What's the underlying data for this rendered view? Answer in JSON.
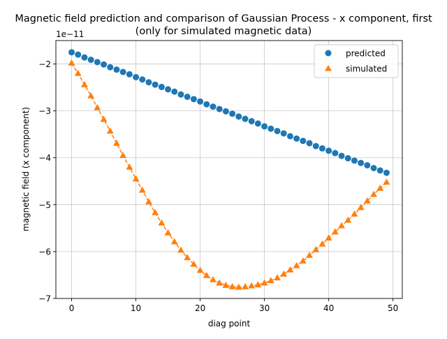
{
  "chart_data": {
    "type": "scatter",
    "title_line1": "Magnetic field prediction and comparison of Gaussian Process - x component, first",
    "title_line2": "(only for simulated magnetic data)",
    "xlabel": "diag point",
    "ylabel": "magnetic field (x component)",
    "y_offset_label": "1e−11",
    "xlim": [
      -2.45,
      51.45
    ],
    "ylim": [
      -7.0,
      -1.5
    ],
    "x_ticks": [
      0,
      10,
      20,
      30,
      40,
      50
    ],
    "x_tick_labels": [
      "0",
      "10",
      "20",
      "30",
      "40",
      "50"
    ],
    "y_ticks": [
      -7,
      -6,
      -5,
      -4,
      -3,
      -2
    ],
    "y_tick_labels": [
      "−7",
      "−6",
      "−5",
      "−4",
      "−3",
      "−2"
    ],
    "grid": true,
    "legend_position": "upper right",
    "x": [
      0,
      1,
      2,
      3,
      4,
      5,
      6,
      7,
      8,
      9,
      10,
      11,
      12,
      13,
      14,
      15,
      16,
      17,
      18,
      19,
      20,
      21,
      22,
      23,
      24,
      25,
      26,
      27,
      28,
      29,
      30,
      31,
      32,
      33,
      34,
      35,
      36,
      37,
      38,
      39,
      40,
      41,
      42,
      43,
      44,
      45,
      46,
      47,
      48,
      49
    ],
    "series": [
      {
        "name": "predicted",
        "marker": "circle",
        "color": "#1f77b4",
        "line": "none",
        "values": [
          -1.75,
          -1.8,
          -1.86,
          -1.91,
          -1.96,
          -2.01,
          -2.07,
          -2.12,
          -2.17,
          -2.22,
          -2.28,
          -2.33,
          -2.39,
          -2.44,
          -2.49,
          -2.54,
          -2.59,
          -2.65,
          -2.7,
          -2.75,
          -2.8,
          -2.86,
          -2.91,
          -2.96,
          -3.01,
          -3.06,
          -3.12,
          -3.17,
          -3.22,
          -3.27,
          -3.33,
          -3.38,
          -3.43,
          -3.48,
          -3.54,
          -3.59,
          -3.64,
          -3.69,
          -3.75,
          -3.8,
          -3.85,
          -3.9,
          -3.96,
          -4.01,
          -4.06,
          -4.11,
          -4.16,
          -4.22,
          -4.27,
          -4.32
        ]
      },
      {
        "name": "simulated",
        "marker": "triangle-up",
        "color": "#ff7f0e",
        "line": "dashed",
        "values": [
          -1.98,
          -2.2,
          -2.44,
          -2.68,
          -2.93,
          -3.18,
          -3.43,
          -3.69,
          -3.95,
          -4.2,
          -4.45,
          -4.69,
          -4.94,
          -5.17,
          -5.39,
          -5.6,
          -5.79,
          -5.97,
          -6.13,
          -6.27,
          -6.4,
          -6.51,
          -6.6,
          -6.67,
          -6.72,
          -6.75,
          -6.76,
          -6.75,
          -6.73,
          -6.71,
          -6.67,
          -6.62,
          -6.56,
          -6.48,
          -6.39,
          -6.3,
          -6.2,
          -6.08,
          -5.96,
          -5.84,
          -5.71,
          -5.58,
          -5.45,
          -5.33,
          -5.2,
          -5.06,
          -4.92,
          -4.78,
          -4.65,
          -4.52
        ]
      }
    ]
  }
}
